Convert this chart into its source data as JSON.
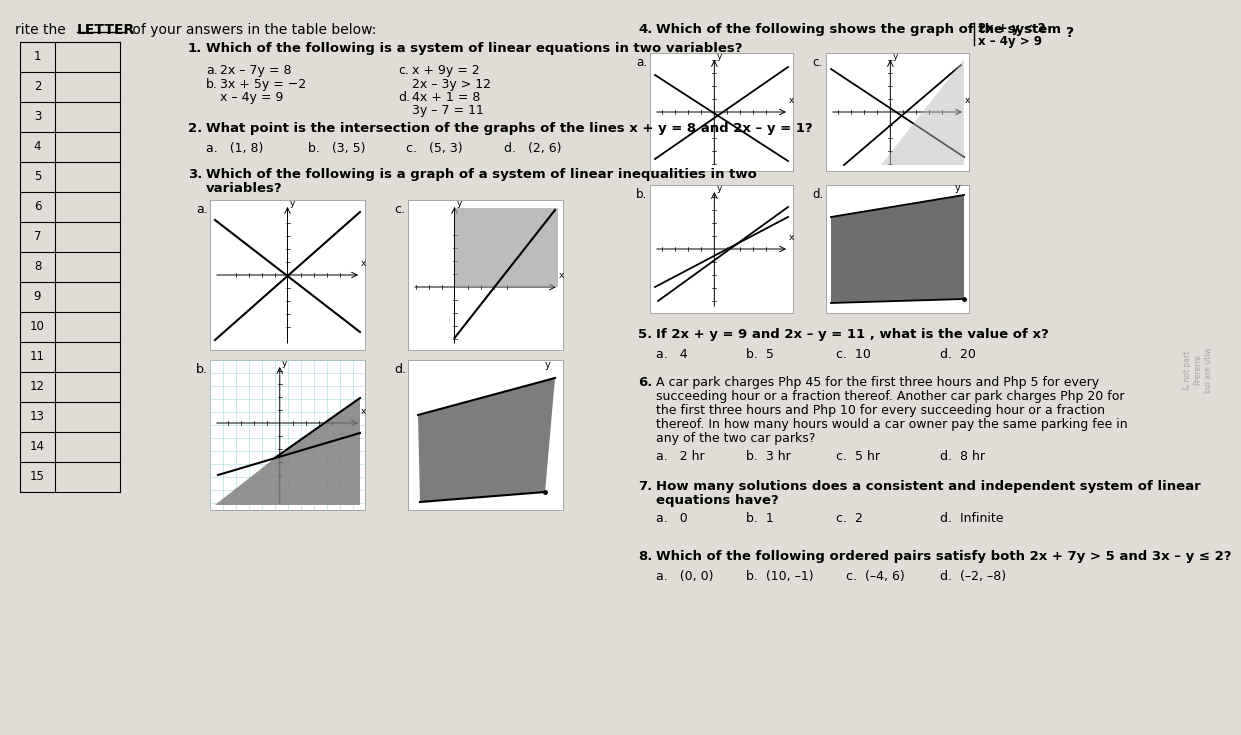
{
  "bg_color": "#e0ddd6",
  "table_rows": [
    "1",
    "2",
    "3",
    "4",
    "5",
    "6",
    "7",
    "8",
    "9",
    "10",
    "11",
    "12",
    "13",
    "14",
    "15"
  ],
  "title_pre": "rite the ",
  "title_ul": "LETTER",
  "title_post": " of your answers in the table below:",
  "q1_text": "Which of the following is a system of linear equations in two variables?",
  "q1_a": "2x – 7y = 8",
  "q1_b1": "3x + 5y = −2",
  "q1_b2": "x – 4y = 9",
  "q1_c1": "x + 9y = 2",
  "q1_c2": "2x – 3y > 12",
  "q1_d1": "4x + 1 = 8",
  "q1_d2": "3y – 7 = 11",
  "q2_text": "What point is the intersection of the graphs of the lines x + y = 8 and 2x – y = 1?",
  "q2_a": "(1, 8)",
  "q2_b": "(3, 5)",
  "q2_c": "(5, 3)",
  "q2_d": "(2, 6)",
  "q3_text1": "Which of the following is a graph of a system of linear inequalities in two",
  "q3_text2": "variables?",
  "q4_text": "Which of the following shows the graph of the system",
  "q4_sys1": "2x + y < 2",
  "q4_sys2": "x – 4y > 9",
  "q5_text": "If 2x + y = 9 and 2x – y = 11 , what is the value of x?",
  "q5_a": "4",
  "q5_b": "5",
  "q5_c": "10",
  "q5_d": "20",
  "q6_text1": "A car park charges Php 45 for the first three hours and Php 5 for every",
  "q6_text2": "succeeding hour or a fraction thereof. Another car park charges Php 20 for",
  "q6_text3": "the first three hours and Php 10 for every succeeding hour or a fraction",
  "q6_text4": "thereof. In how many hours would a car owner pay the same parking fee in",
  "q6_text5": "any of the two car parks?",
  "q6_a": "2 hr",
  "q6_b": "3 hr",
  "q6_c": "5 hr",
  "q6_d": "8 hr",
  "q7_text1": "How many solutions does a consistent and independent system of linear",
  "q7_text2": "equations have?",
  "q7_a": "0",
  "q7_b": "1",
  "q7_c": "2",
  "q7_d": "Infinite",
  "q8_text": "Which of the following ordered pairs satisfy both 2x + 7y > 5 and 3x – y ≤ 2?",
  "q8_a": "(0, 0)",
  "q8_b": "(10, –1)",
  "q8_c": "(–4, 6)",
  "q8_d": "(–2, –8)"
}
